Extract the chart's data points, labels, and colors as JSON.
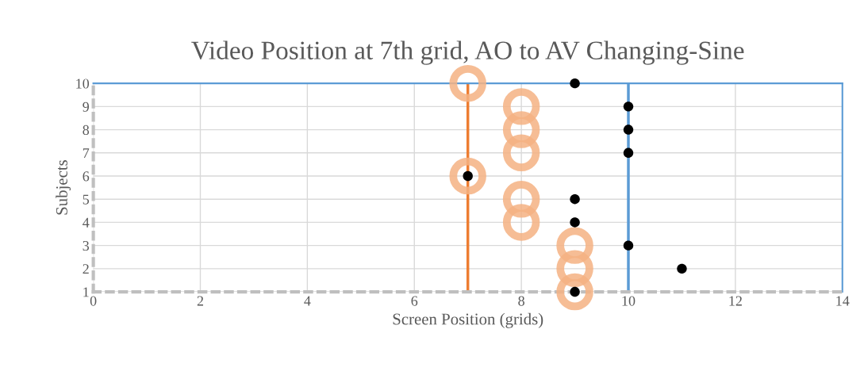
{
  "chart_data": {
    "type": "scatter",
    "title": "Video Position at 7th grid, AO to AV Changing-Sine",
    "xlabel": "Screen Position (grids)",
    "ylabel": "Subjects",
    "series": [
      {
        "color": "#f4b183",
        "x": [
          9,
          9,
          9,
          8,
          8,
          7,
          8,
          8,
          8,
          7
        ],
        "values": [
          1,
          2,
          3,
          4,
          5,
          6,
          7,
          8,
          9,
          10
        ]
      },
      {
        "color": "#000000",
        "x": [
          9,
          11,
          10,
          9,
          9,
          7,
          10,
          10,
          10,
          9
        ],
        "values": [
          1,
          2,
          3,
          4,
          5,
          6,
          7,
          8,
          9,
          10
        ]
      }
    ],
    "ref_lines": [
      {
        "axis": "x",
        "value": 7,
        "color": "#ed7d31"
      },
      {
        "axis": "x",
        "value": 10,
        "color": "#5b9bd5"
      }
    ],
    "xlim": [
      0,
      14
    ],
    "xticks": [
      0,
      2,
      4,
      6,
      8,
      10,
      12,
      14
    ],
    "ylim": [
      1,
      10
    ],
    "yticks": [
      1,
      2,
      3,
      4,
      5,
      6,
      7,
      8,
      9,
      10
    ],
    "grid": true,
    "marker": "circle"
  }
}
